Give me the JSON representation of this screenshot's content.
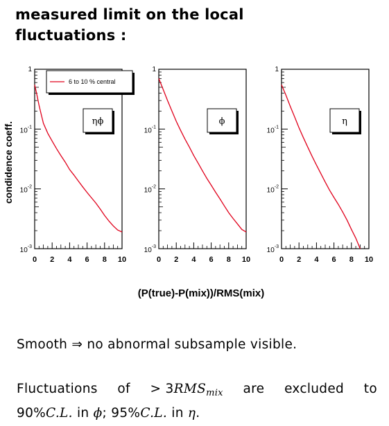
{
  "heading": {
    "line1": "measured limit on the local",
    "line2": "fluctuations :"
  },
  "chart_data": {
    "type": "line",
    "ylabel": "condidence coeff.",
    "xlabel": "(P(true)-P(mix))/RMS(mix)",
    "xlim": [
      0,
      10
    ],
    "ylim": [
      0.001,
      1
    ],
    "yscale": "log",
    "x_ticks": [
      "0",
      "2",
      "4",
      "6",
      "8",
      "10"
    ],
    "y_ticks": [
      {
        "value": 1,
        "label": "1",
        "exp": ""
      },
      {
        "value": 0.1,
        "label": "10",
        "exp": "-1"
      },
      {
        "value": 0.01,
        "label": "10",
        "exp": "-2"
      },
      {
        "value": 0.001,
        "label": "10",
        "exp": "-3"
      }
    ],
    "line_color": "#e0001b",
    "legend": {
      "text": "6 to 10 % central",
      "placement": "top-right of first panel"
    },
    "panels": [
      {
        "label": "ηϕ",
        "series": {
          "x": [
            0.0,
            0.25,
            0.5,
            0.75,
            1.0,
            1.5,
            2.0,
            2.5,
            3.0,
            3.5,
            4.0,
            4.5,
            5.0,
            5.5,
            6.0,
            6.5,
            7.0,
            7.5,
            8.0,
            8.5,
            9.0,
            9.5,
            10.0
          ],
          "y": [
            0.55,
            0.38,
            0.25,
            0.175,
            0.125,
            0.085,
            0.063,
            0.047,
            0.036,
            0.028,
            0.021,
            0.017,
            0.0135,
            0.0108,
            0.0087,
            0.0071,
            0.0058,
            0.0046,
            0.0036,
            0.0029,
            0.0024,
            0.00205,
            0.0019
          ]
        }
      },
      {
        "label": "ϕ",
        "series": {
          "x": [
            0.0,
            0.5,
            1.0,
            1.5,
            2.0,
            2.5,
            3.0,
            3.5,
            4.0,
            4.5,
            5.0,
            5.5,
            6.0,
            6.5,
            7.0,
            7.5,
            8.0,
            8.5,
            9.0,
            9.5,
            10.0
          ],
          "y": [
            0.7,
            0.46,
            0.3,
            0.2,
            0.135,
            0.095,
            0.068,
            0.05,
            0.036,
            0.027,
            0.02,
            0.015,
            0.0115,
            0.0088,
            0.0068,
            0.0052,
            0.004,
            0.0032,
            0.0026,
            0.0021,
            0.0019
          ]
        }
      },
      {
        "label": "η",
        "series": {
          "x": [
            0.0,
            0.5,
            1.0,
            1.5,
            2.0,
            2.5,
            3.0,
            3.5,
            4.0,
            4.5,
            5.0,
            5.5,
            6.0,
            6.5,
            7.0,
            7.5,
            8.0,
            8.5,
            9.0
          ],
          "y": [
            0.55,
            0.37,
            0.24,
            0.16,
            0.105,
            0.072,
            0.05,
            0.035,
            0.025,
            0.018,
            0.013,
            0.0095,
            0.0072,
            0.0055,
            0.0041,
            0.003,
            0.0021,
            0.0015,
            0.001
          ]
        }
      }
    ]
  },
  "text": {
    "para1": "Smooth ⇒ no abnormal subsample visible.",
    "p2_w1": "Fluctuations",
    "p2_w2": "of",
    "p2_gt": ">",
    "p2_three": "3",
    "p2_rms": "RMS",
    "p2_mix": "mix",
    "p2_w3": "are",
    "p2_w4": "excluded",
    "p2_w5": "to",
    "p2_pct1": "90%",
    "p2_cl1": "C.L.",
    "p2_in1": "in",
    "p2_phi": "ϕ",
    "p2_semi": ";",
    "p2_pct2": "95%",
    "p2_cl2": "C.L.",
    "p2_in2": "in",
    "p2_eta": "η",
    "p2_end": "."
  }
}
